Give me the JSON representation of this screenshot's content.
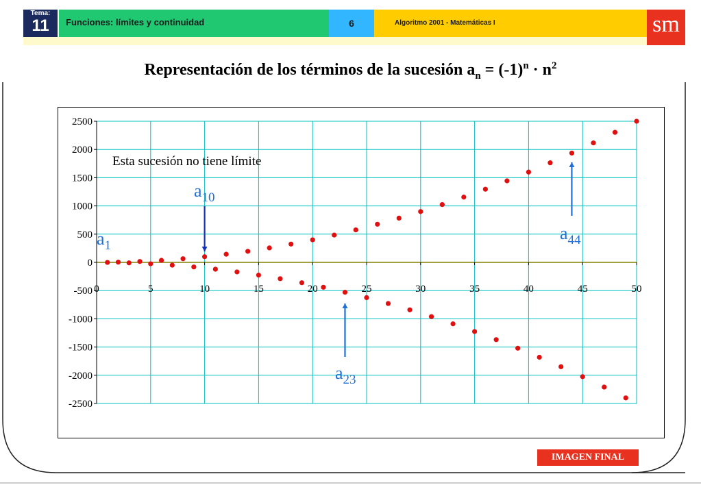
{
  "header": {
    "tema_label": "Tema:",
    "tema_number": "11",
    "topic": "Funciones: límites y continuidad",
    "page_number": "6",
    "publisher_line": "Algoritmo 2001 - Matemáticas I",
    "logo": "sm"
  },
  "slide": {
    "title_main": "Representación de los términos de la sucesión a",
    "title_sub": "n",
    "title_mid": " = (-1)",
    "title_sup1": "n",
    "title_dot": " · n",
    "title_sup2": "2",
    "final_badge": "IMAGEN FINAL"
  },
  "colors": {
    "grid": "#00c0c0",
    "points": "#e01010",
    "annotation": "#1f6fd6",
    "zero_line": "#808000",
    "badge": "#e8321f"
  },
  "chart_data": {
    "type": "scatter",
    "title": "",
    "xlabel": "",
    "ylabel": "",
    "xlim": [
      0,
      50
    ],
    "ylim": [
      -2500,
      2500
    ],
    "x_ticks": [
      "0",
      "5",
      "10",
      "15",
      "20",
      "25",
      "30",
      "35",
      "40",
      "45",
      "50"
    ],
    "y_ticks": [
      "2500",
      "2000",
      "1500",
      "1000",
      "500",
      "0",
      "-500",
      "-1000",
      "-1500",
      "-2000",
      "-2500"
    ],
    "grid": true,
    "series": [
      {
        "x": [
          1,
          2,
          3,
          4,
          5,
          6,
          7,
          8,
          9,
          10,
          11,
          12,
          13,
          14,
          15,
          16,
          17,
          18,
          19,
          20,
          21,
          22,
          23,
          24,
          25,
          26,
          27,
          28,
          29,
          30,
          31,
          32,
          33,
          34,
          35,
          36,
          37,
          38,
          39,
          40,
          41,
          42,
          43,
          44,
          45,
          46,
          47,
          48,
          49,
          50
        ],
        "y": [
          -1,
          4,
          -9,
          16,
          -25,
          36,
          -49,
          64,
          -81,
          100,
          -121,
          144,
          -169,
          196,
          -225,
          256,
          -289,
          324,
          -361,
          400,
          -441,
          484,
          -529,
          576,
          -625,
          676,
          -729,
          784,
          -841,
          900,
          -961,
          1024,
          -1089,
          1156,
          -1225,
          1296,
          -1369,
          1444,
          -1521,
          1600,
          -1681,
          1764,
          -1849,
          1936,
          -2025,
          2116,
          -2209,
          2304,
          -2401,
          2500
        ]
      }
    ],
    "annotations": {
      "note": "Esta sucesión no tiene límite",
      "labels": [
        {
          "base": "a",
          "sub": "1"
        },
        {
          "base": "a",
          "sub": "10"
        },
        {
          "base": "a",
          "sub": "23"
        },
        {
          "base": "a",
          "sub": "44"
        }
      ]
    }
  }
}
